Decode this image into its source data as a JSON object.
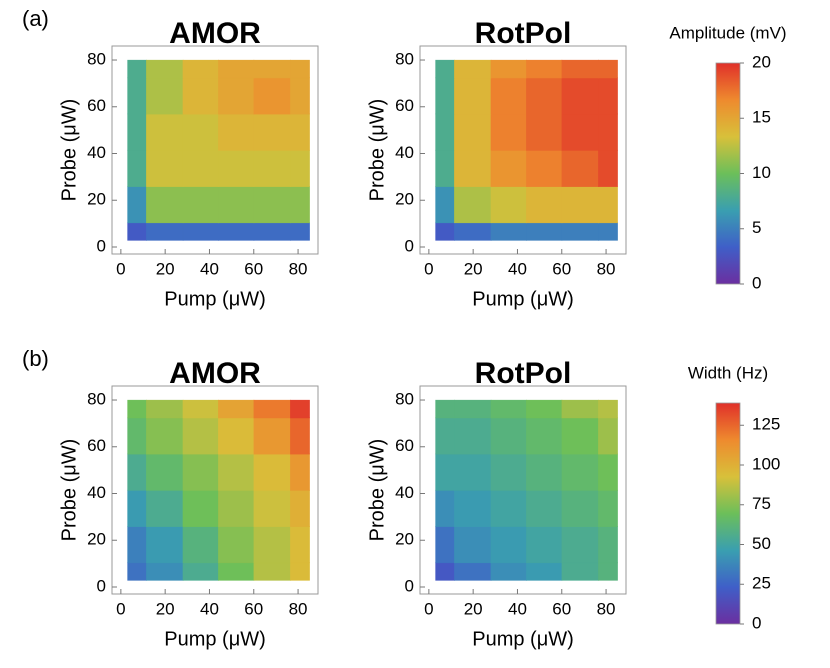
{
  "chart_data": [
    {
      "type": "contour",
      "panel_label": "(a)",
      "colorscale": [
        "#6b2fa0",
        "#3f5fc8",
        "#3a9fb0",
        "#6cbf5a",
        "#d8c03a",
        "#ee8a2e",
        "#e0302a"
      ],
      "colorbar": {
        "title": "Amplitude (mV)",
        "ylim": [
          0,
          20
        ],
        "yticks": [
          0,
          5,
          10,
          15,
          20
        ]
      },
      "plots": [
        {
          "title": "AMOR",
          "xlabel": "Pump (μW)",
          "ylabel": "Probe (μW)",
          "xlim": [
            -4,
            89
          ],
          "ylim": [
            -3,
            86
          ],
          "xticks": [
            0,
            20,
            40,
            60,
            80
          ],
          "yticks": [
            0,
            20,
            40,
            60,
            80
          ],
          "x": [
            3,
            20,
            36,
            52,
            68,
            85
          ],
          "y": [
            3,
            18,
            34,
            49,
            65,
            80
          ],
          "z": [
            [
              3,
              4,
              4,
              4,
              4,
              4
            ],
            [
              6,
              11,
              11,
              11,
              11,
              11
            ],
            [
              8,
              13,
              13,
              13,
              13,
              13
            ],
            [
              8,
              13,
              13,
              14,
              14,
              14
            ],
            [
              8,
              12,
              14,
              15,
              16,
              15
            ],
            [
              8,
              12,
              14,
              15,
              15,
              15
            ]
          ]
        },
        {
          "title": "RotPol",
          "xlabel": "Pump (μW)",
          "ylabel": "Probe (μW)",
          "xlim": [
            -4,
            89
          ],
          "ylim": [
            -3,
            86
          ],
          "xticks": [
            0,
            20,
            40,
            60,
            80
          ],
          "yticks": [
            0,
            20,
            40,
            60,
            80
          ],
          "x": [
            3,
            20,
            36,
            52,
            68,
            85
          ],
          "y": [
            3,
            18,
            34,
            49,
            65,
            80
          ],
          "z": [
            [
              3,
              4,
              5,
              5,
              5,
              5
            ],
            [
              6,
              12,
              13,
              14,
              14,
              14
            ],
            [
              8,
              14,
              16,
              17,
              18,
              19
            ],
            [
              8,
              14,
              17,
              18,
              19,
              19
            ],
            [
              8,
              14,
              17,
              18,
              19,
              19
            ],
            [
              8,
              14,
              16,
              17,
              18,
              18
            ]
          ]
        }
      ]
    },
    {
      "type": "contour",
      "panel_label": "(b)",
      "colorscale": [
        "#6b2fa0",
        "#3f5fc8",
        "#3a9fb0",
        "#6cbf5a",
        "#d8c03a",
        "#ee8a2e",
        "#e0302a"
      ],
      "colorbar": {
        "title": "Width (Hz)",
        "ylim": [
          0,
          139
        ],
        "yticks": [
          0,
          25,
          50,
          75,
          100,
          125
        ]
      },
      "plots": [
        {
          "title": "AMOR",
          "xlabel": "Pump (μW)",
          "ylabel": "Probe (μW)",
          "xlim": [
            -4,
            89
          ],
          "ylim": [
            -3,
            86
          ],
          "xticks": [
            0,
            20,
            40,
            60,
            80
          ],
          "yticks": [
            0,
            20,
            40,
            60,
            80
          ],
          "x": [
            3,
            20,
            36,
            52,
            68,
            85
          ],
          "y": [
            3,
            18,
            34,
            49,
            65,
            80
          ],
          "z": [
            [
              30,
              40,
              55,
              70,
              85,
              95
            ],
            [
              35,
              45,
              60,
              75,
              85,
              95
            ],
            [
              45,
              55,
              70,
              80,
              90,
              100
            ],
            [
              55,
              65,
              75,
              85,
              95,
              110
            ],
            [
              65,
              75,
              85,
              95,
              110,
              125
            ],
            [
              70,
              80,
              90,
              105,
              120,
              135
            ]
          ]
        },
        {
          "title": "RotPol",
          "xlabel": "Pump (μW)",
          "ylabel": "Probe (μW)",
          "xlim": [
            -4,
            89
          ],
          "ylim": [
            -3,
            86
          ],
          "xticks": [
            0,
            20,
            40,
            60,
            80
          ],
          "yticks": [
            0,
            20,
            40,
            60,
            80
          ],
          "x": [
            3,
            20,
            36,
            52,
            68,
            85
          ],
          "y": [
            3,
            18,
            34,
            49,
            65,
            80
          ],
          "z": [
            [
              20,
              30,
              40,
              45,
              55,
              60
            ],
            [
              30,
              40,
              45,
              50,
              55,
              60
            ],
            [
              40,
              45,
              50,
              55,
              60,
              65
            ],
            [
              50,
              50,
              55,
              60,
              65,
              70
            ],
            [
              55,
              55,
              60,
              65,
              70,
              80
            ],
            [
              60,
              60,
              65,
              70,
              80,
              85
            ]
          ]
        }
      ]
    }
  ]
}
